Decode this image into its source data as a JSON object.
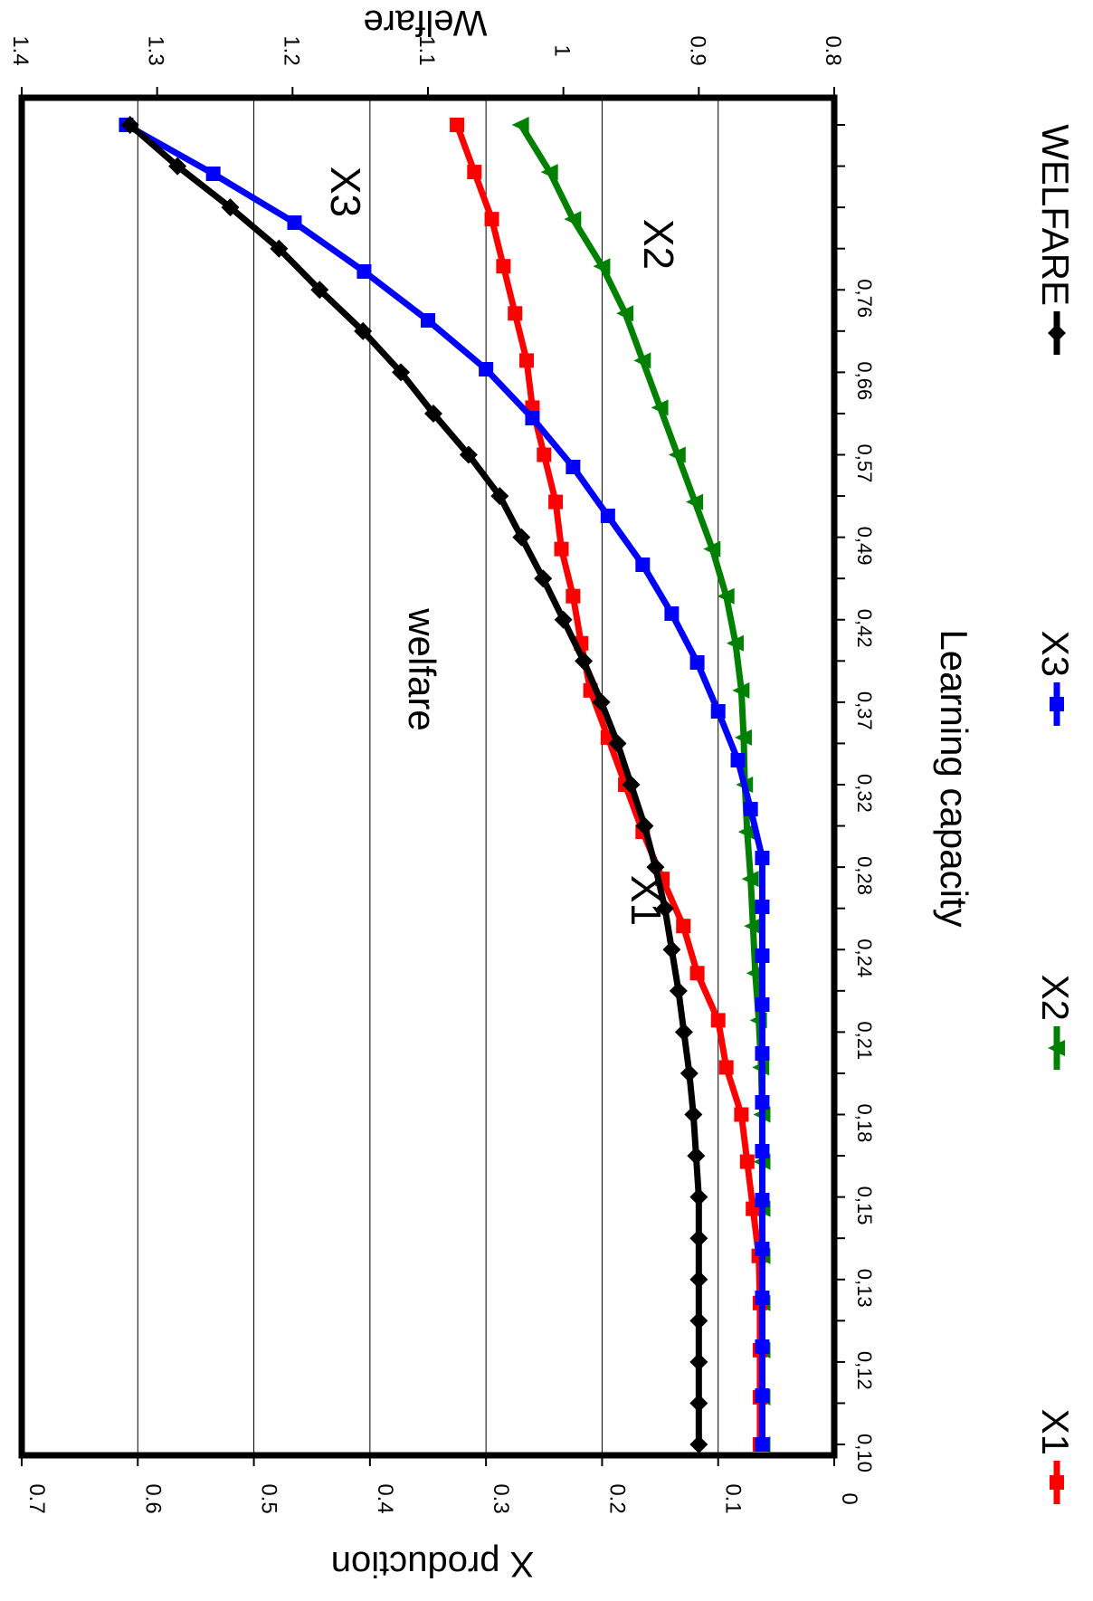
{
  "chart_data": {
    "type": "line",
    "orientation": "rotated 90 degrees clockwise",
    "xlabel": "Learning capacity",
    "ylabel": "X production",
    "y2label": "Welfare",
    "x_tick_labels": [
      "0,10",
      "0,12",
      "0,13",
      "0,15",
      "0,18",
      "0,21",
      "0,24",
      "0,28",
      "0,32",
      "0,37",
      "0,42",
      "0,49",
      "0,57",
      "0,66",
      "0,76"
    ],
    "yticks": [
      "0",
      "0.1",
      "0.2",
      "0.3",
      "0.4",
      "0.5",
      "0.6",
      "0.7"
    ],
    "y2ticks": [
      "0.8",
      "0.9",
      "1",
      "1.1",
      "1.2",
      "1.3",
      "1.4"
    ],
    "ylim": [
      0,
      0.7
    ],
    "y2lim": [
      0.8,
      1.4
    ],
    "grid": true,
    "legend_position": "bottom",
    "annotations": [
      {
        "text": "welfare",
        "near": "WELFARE"
      },
      {
        "text": "X1",
        "near": "X1"
      },
      {
        "text": "X2",
        "near": "X2"
      },
      {
        "text": "X3",
        "near": "X3"
      }
    ],
    "series": [
      {
        "name": "X1",
        "axis": "left",
        "color": "#ff0000",
        "marker": "square",
        "values": [
          0.064,
          0.064,
          0.064,
          0.064,
          0.065,
          0.07,
          0.075,
          0.08,
          0.093,
          0.1,
          0.118,
          0.13,
          0.148,
          0.165,
          0.18,
          0.195,
          0.21,
          0.218,
          0.225,
          0.235,
          0.24,
          0.25,
          0.26,
          0.265,
          0.275,
          0.285,
          0.295,
          0.31,
          0.325
        ]
      },
      {
        "name": "X2",
        "axis": "left",
        "color": "#008000",
        "marker": "triangle",
        "values": [
          0.062,
          0.062,
          0.062,
          0.062,
          0.062,
          0.062,
          0.062,
          0.062,
          0.063,
          0.065,
          0.068,
          0.07,
          0.072,
          0.075,
          0.077,
          0.078,
          0.08,
          0.085,
          0.093,
          0.105,
          0.12,
          0.135,
          0.15,
          0.165,
          0.18,
          0.2,
          0.225,
          0.245,
          0.27
        ]
      },
      {
        "name": "X3",
        "axis": "left",
        "color": "#0000ff",
        "marker": "square",
        "values": [
          0.062,
          0.062,
          0.062,
          0.062,
          0.062,
          0.062,
          0.062,
          0.062,
          0.062,
          0.062,
          0.062,
          0.062,
          0.062,
          0.072,
          0.083,
          0.1,
          0.118,
          0.14,
          0.165,
          0.195,
          0.225,
          0.26,
          0.3,
          0.35,
          0.405,
          0.465,
          0.535,
          0.61
        ]
      },
      {
        "name": "WELFARE",
        "axis": "right",
        "color": "#000000",
        "marker": "diamond",
        "values": [
          0.9,
          0.9,
          0.9,
          0.9,
          0.9,
          0.9,
          0.9,
          0.902,
          0.904,
          0.907,
          0.911,
          0.915,
          0.92,
          0.925,
          0.932,
          0.94,
          0.95,
          0.96,
          0.972,
          0.985,
          1.0,
          1.015,
          1.031,
          1.047,
          1.07,
          1.096,
          1.12,
          1.148,
          1.18,
          1.21,
          1.246,
          1.285,
          1.32
        ]
      }
    ]
  }
}
